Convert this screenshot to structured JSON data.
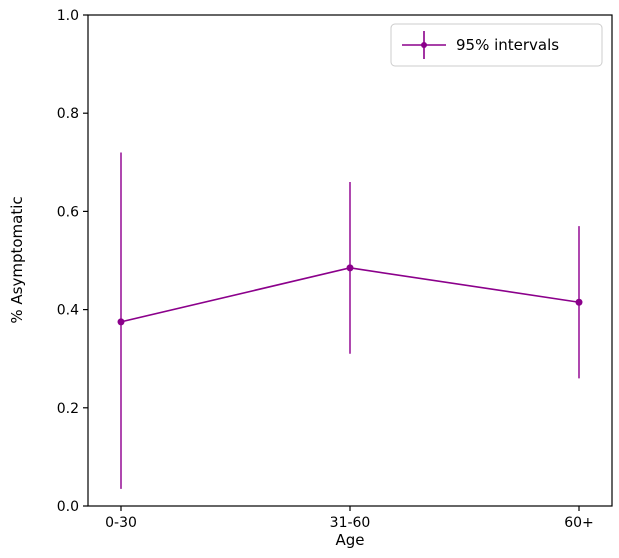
{
  "chart_data": {
    "type": "line",
    "title": "",
    "xlabel": "Age",
    "ylabel": "% Asymptomatic",
    "categories": [
      "0-30",
      "31-60",
      "60+"
    ],
    "series": [
      {
        "name": "95% intervals",
        "values": [
          0.375,
          0.485,
          0.415
        ],
        "ci_low": [
          0.035,
          0.31,
          0.26
        ],
        "ci_high": [
          0.72,
          0.66,
          0.57
        ]
      }
    ],
    "ylim": [
      0.0,
      1.0
    ],
    "yticks": [
      0.0,
      0.2,
      0.4,
      0.6,
      0.8,
      1.0
    ],
    "legend_label": "95% intervals",
    "legend_position": "upper right",
    "grid": false,
    "colors": {
      "line": "#8b008b",
      "errorbar": "#9b1b9b",
      "axis": "#000000",
      "legend_border": "#cccccc"
    }
  }
}
